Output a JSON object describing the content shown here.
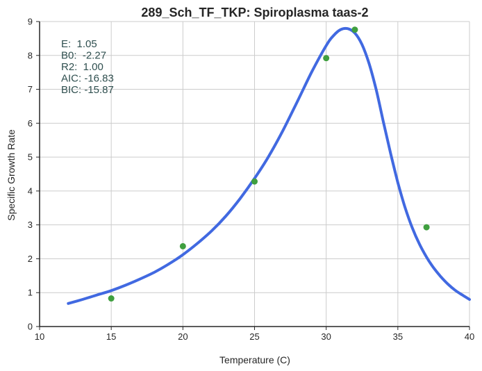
{
  "chart_data": {
    "type": "scatter",
    "title": "289_Sch_TF_TKP: Spiroplasma taas-2",
    "xlabel": "Temperature (C)",
    "ylabel": "Specific Growth Rate",
    "xlim": [
      10,
      40
    ],
    "ylim": [
      0,
      9
    ],
    "xticks": [
      "10",
      "15",
      "20",
      "25",
      "30",
      "35",
      "40"
    ],
    "yticks": [
      "0",
      "1",
      "2",
      "3",
      "4",
      "5",
      "6",
      "7",
      "8",
      "9"
    ],
    "grid": true,
    "colors": {
      "points": "#3f9f3f",
      "curve": "#4169e1",
      "annotation": "#2f4f4f"
    },
    "points": {
      "x": [
        15,
        20,
        25,
        30,
        32,
        37
      ],
      "y": [
        0.83,
        2.37,
        4.28,
        7.92,
        8.76,
        2.93
      ]
    },
    "curve": {
      "x": [
        12,
        13,
        14,
        15,
        16,
        17,
        18,
        19,
        20,
        21,
        22,
        23,
        24,
        25,
        26,
        27,
        28,
        29,
        30,
        30.5,
        31,
        31.5,
        32,
        32.5,
        33,
        33.5,
        34,
        34.5,
        35,
        35.5,
        36,
        36.5,
        37,
        37.5,
        38,
        38.5,
        39,
        39.5,
        40
      ],
      "y": [
        0.68,
        0.8,
        0.93,
        1.06,
        1.22,
        1.4,
        1.6,
        1.84,
        2.12,
        2.45,
        2.82,
        3.26,
        3.78,
        4.37,
        5.03,
        5.8,
        6.65,
        7.52,
        8.29,
        8.58,
        8.76,
        8.79,
        8.66,
        8.32,
        7.75,
        6.97,
        6.02,
        5.1,
        4.25,
        3.52,
        2.92,
        2.44,
        2.05,
        1.73,
        1.47,
        1.25,
        1.07,
        0.93,
        0.8
      ]
    },
    "annotations": [
      "E:  1.05",
      "B0:  -2.27",
      "R2:  1.00",
      "AIC: -16.83",
      "BIC: -15.87"
    ]
  }
}
